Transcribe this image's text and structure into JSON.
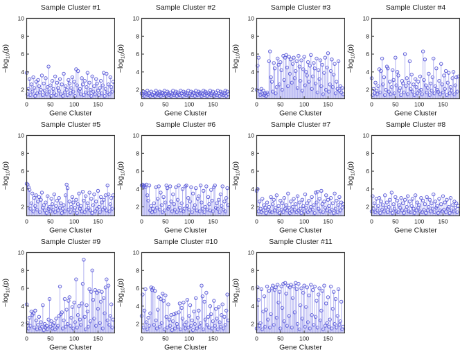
{
  "figure": {
    "background": "#ffffff",
    "grid": {
      "rows": 3,
      "cols": 4,
      "num_subplots": 11
    }
  },
  "style": {
    "stem_color": "#a5a5ee",
    "marker_color": "#5050d5",
    "axis_color": "#333333",
    "text_color": "#1a1a1a"
  },
  "chart_data": {
    "type": "stem",
    "xlabel": "Gene Cluster",
    "ylabel": {
      "pre": "−log",
      "sub": "10",
      "post": "(p)"
    },
    "xlim": [
      0,
      185
    ],
    "ylim": [
      1,
      10
    ],
    "xticks": [
      0,
      50,
      100,
      150
    ],
    "yticks": [
      2,
      4,
      6,
      8,
      10
    ],
    "legend": "none",
    "grid_lines": false,
    "x": [
      0,
      2,
      4,
      6,
      8,
      10,
      12,
      14,
      16,
      18,
      20,
      22,
      24,
      26,
      28,
      30,
      32,
      34,
      36,
      38,
      40,
      42,
      44,
      46,
      48,
      50,
      52,
      54,
      56,
      58,
      60,
      62,
      64,
      66,
      68,
      70,
      72,
      74,
      76,
      78,
      80,
      82,
      84,
      86,
      88,
      90,
      92,
      94,
      96,
      98,
      100,
      102,
      104,
      106,
      108,
      110,
      112,
      114,
      116,
      118,
      120,
      122,
      124,
      126,
      128,
      130,
      132,
      134,
      136,
      138,
      140,
      142,
      144,
      146,
      148,
      150,
      152,
      154,
      156,
      158,
      160,
      162,
      164,
      166,
      168,
      170,
      172,
      174,
      176,
      178,
      180,
      182
    ],
    "series": [
      {
        "name": "Sample Cluster #1",
        "values": [
          3.9,
          1.5,
          2.1,
          3.2,
          1.4,
          2.6,
          1.8,
          3.4,
          2.2,
          1.3,
          2.9,
          1.6,
          3.1,
          2.4,
          1.7,
          2.0,
          3.6,
          1.4,
          2.7,
          1.9,
          3.3,
          1.5,
          2.3,
          4.6,
          1.8,
          2.5,
          1.3,
          3.0,
          2.1,
          1.6,
          3.5,
          1.4,
          2.8,
          2.2,
          1.9,
          3.2,
          1.5,
          2.6,
          1.3,
          3.8,
          1.7,
          2.4,
          2.0,
          1.4,
          3.1,
          2.7,
          1.6,
          2.2,
          3.4,
          1.8,
          2.9,
          1.3,
          4.3,
          2.5,
          4.1,
          1.9,
          2.1,
          1.5,
          3.3,
          2.6,
          1.4,
          3.0,
          1.7,
          2.3,
          3.9,
          1.6,
          2.8,
          2.0,
          1.3,
          3.5,
          1.8,
          2.4,
          1.5,
          3.2,
          2.7,
          1.9,
          1.4,
          2.2,
          3.0,
          1.6,
          2.5,
          3.9,
          1.3,
          2.1,
          3.8,
          1.7,
          2.6,
          1.5,
          3.4,
          2.3,
          1.8,
          2.9
        ]
      },
      {
        "name": "Sample Cluster #2",
        "values": [
          1.6,
          1.4,
          1.8,
          1.3,
          1.7,
          1.5,
          1.9,
          1.4,
          1.6,
          1.3,
          1.8,
          1.5,
          1.4,
          1.7,
          1.3,
          1.9,
          1.5,
          1.6,
          1.4,
          1.8,
          1.3,
          1.7,
          1.6,
          1.4,
          1.9,
          1.5,
          1.3,
          1.8,
          1.6,
          1.4,
          1.7,
          1.3,
          1.5,
          1.9,
          1.4,
          1.6,
          1.8,
          1.3,
          1.7,
          1.5,
          1.4,
          1.9,
          1.6,
          1.3,
          1.8,
          1.5,
          1.7,
          1.4,
          1.6,
          1.9,
          1.3,
          1.5,
          1.8,
          1.4,
          1.7,
          1.6,
          1.3,
          1.9,
          1.5,
          1.4,
          1.8,
          1.6,
          1.7,
          1.3,
          1.5,
          1.9,
          1.4,
          1.8,
          1.6,
          1.3,
          1.7,
          1.5,
          1.9,
          1.4,
          1.6,
          1.8,
          1.3,
          1.5,
          1.7,
          1.4,
          1.9,
          1.6,
          1.3,
          1.8,
          1.5,
          1.7,
          1.4,
          1.6,
          1.9,
          1.3,
          1.8,
          1.5
        ]
      },
      {
        "name": "Sample Cluster #3",
        "values": [
          2.0,
          4.7,
          5.6,
          1.8,
          1.4,
          2.1,
          1.5,
          1.9,
          1.4,
          1.6,
          1.3,
          1.7,
          1.5,
          5.2,
          6.3,
          3.4,
          2.9,
          1.8,
          5.0,
          4.4,
          1.6,
          2.3,
          5.5,
          4.8,
          2.6,
          5.1,
          4.2,
          2.0,
          5.8,
          3.1,
          5.6,
          5.9,
          4.5,
          2.4,
          5.7,
          3.8,
          5.4,
          2.8,
          4.9,
          5.6,
          3.3,
          4.1,
          5.2,
          2.2,
          5.8,
          4.6,
          3.0,
          5.3,
          1.9,
          4.3,
          5.7,
          2.5,
          4.0,
          3.6,
          5.1,
          2.9,
          4.7,
          5.9,
          2.1,
          3.5,
          5.0,
          4.4,
          2.7,
          5.5,
          1.7,
          4.2,
          3.2,
          5.3,
          2.4,
          4.8,
          1.5,
          3.9,
          5.6,
          2.0,
          4.5,
          6.1,
          1.8,
          2.6,
          4.1,
          5.4,
          2.3,
          3.7,
          4.9,
          1.6,
          2.9,
          2.1,
          5.2,
          1.9,
          2.4,
          1.7,
          2.2,
          1.5
        ]
      },
      {
        "name": "Sample Cluster #4",
        "values": [
          3.3,
          1.4,
          2.1,
          1.6,
          2.8,
          1.9,
          1.5,
          2.4,
          4.3,
          1.7,
          4.1,
          5.5,
          2.6,
          3.4,
          1.4,
          2.0,
          4.6,
          4.4,
          1.8,
          2.9,
          1.5,
          2.3,
          4.2,
          3.1,
          1.6,
          5.6,
          2.5,
          4.0,
          3.6,
          1.9,
          2.2,
          1.4,
          3.0,
          2.7,
          1.7,
          6.0,
          2.4,
          3.3,
          1.5,
          2.8,
          5.2,
          2.1,
          3.7,
          1.8,
          2.6,
          1.4,
          3.2,
          2.3,
          1.6,
          2.9,
          1.9,
          3.5,
          2.0,
          1.5,
          6.3,
          3.1,
          5.4,
          2.5,
          1.7,
          2.2,
          3.8,
          1.4,
          2.7,
          1.9,
          3.4,
          5.5,
          1.6,
          2.4,
          4.4,
          2.0,
          1.8,
          3.0,
          1.5,
          4.9,
          2.6,
          1.7,
          3.6,
          2.1,
          4.1,
          1.4,
          2.8,
          3.9,
          1.6,
          2.3,
          1.9,
          3.3,
          4.0,
          1.5,
          2.5,
          3.4,
          1.8,
          3.5
        ]
      },
      {
        "name": "Sample Cluster #5",
        "values": [
          4.6,
          4.5,
          4.2,
          3.9,
          1.8,
          2.4,
          3.5,
          1.5,
          3.0,
          2.1,
          3.3,
          1.7,
          2.6,
          3.1,
          1.4,
          2.8,
          3.6,
          1.9,
          2.2,
          1.6,
          2.5,
          1.3,
          3.2,
          1.8,
          2.0,
          1.5,
          2.9,
          2.3,
          1.7,
          3.4,
          1.4,
          2.1,
          2.7,
          1.6,
          3.0,
          1.9,
          2.4,
          1.3,
          1.8,
          2.2,
          1.5,
          3.3,
          4.5,
          4.1,
          1.7,
          2.6,
          1.4,
          2.0,
          3.1,
          2.5,
          1.6,
          1.9,
          2.8,
          1.3,
          2.3,
          3.5,
          1.8,
          2.1,
          1.5,
          3.7,
          2.7,
          1.4,
          3.2,
          1.7,
          2.4,
          1.9,
          3.6,
          1.6,
          2.9,
          1.3,
          2.2,
          3.4,
          1.5,
          2.6,
          1.8,
          3.8,
          2.0,
          1.4,
          3.1,
          2.5,
          1.7,
          2.8,
          1.9,
          3.3,
          1.6,
          4.4,
          3.4,
          1.5,
          2.3,
          3.0,
          1.8,
          3.3
        ]
      },
      {
        "name": "Sample Cluster #6",
        "values": [
          4.4,
          4.5,
          4.3,
          4.4,
          4.2,
          4.5,
          3.3,
          2.7,
          4.4,
          1.6,
          2.1,
          1.4,
          1.8,
          2.4,
          1.5,
          4.2,
          1.9,
          2.9,
          4.3,
          1.7,
          3.6,
          2.2,
          1.4,
          3.1,
          1.6,
          2.5,
          4.4,
          4.1,
          1.8,
          2.0,
          4.3,
          2.6,
          1.5,
          3.4,
          2.3,
          1.7,
          4.2,
          1.4,
          2.8,
          4.4,
          1.9,
          1.6,
          2.4,
          4.0,
          1.5,
          1.8,
          4.3,
          4.4,
          2.1,
          3.0,
          1.7,
          2.6,
          4.2,
          1.4,
          3.5,
          1.9,
          2.2,
          4.1,
          1.6,
          2.9,
          3.2,
          1.5,
          4.4,
          2.5,
          1.8,
          3.8,
          1.4,
          2.0,
          4.3,
          1.7,
          3.1,
          2.3,
          1.6,
          3.9,
          2.7,
          1.5,
          4.2,
          4.4,
          1.9,
          2.4,
          1.8,
          2.8,
          1.4,
          3.4,
          2.1,
          4.3,
          1.7,
          2.6,
          1.5,
          3.0,
          4.1,
          2.2
        ]
      },
      {
        "name": "Sample Cluster #7",
        "values": [
          3.8,
          4.0,
          1.5,
          2.6,
          1.8,
          1.4,
          2.9,
          1.6,
          2.2,
          1.9,
          1.3,
          2.5,
          1.7,
          2.0,
          1.5,
          3.1,
          1.4,
          2.3,
          2.8,
          1.6,
          1.9,
          3.3,
          1.5,
          2.1,
          1.3,
          2.7,
          1.7,
          2.4,
          1.4,
          3.0,
          1.8,
          2.2,
          1.6,
          3.5,
          1.9,
          1.3,
          2.6,
          1.5,
          2.0,
          2.9,
          1.7,
          2.3,
          1.4,
          3.2,
          1.6,
          2.5,
          1.8,
          1.3,
          2.8,
          2.1,
          1.5,
          3.4,
          1.9,
          2.4,
          1.4,
          2.7,
          1.6,
          2.0,
          3.1,
          1.7,
          2.2,
          1.3,
          3.6,
          2.5,
          3.7,
          1.8,
          2.9,
          1.5,
          3.8,
          2.3,
          1.4,
          2.6,
          1.9,
          3.3,
          1.6,
          2.8,
          2.1,
          1.5,
          3.0,
          1.7,
          2.4,
          1.3,
          3.5,
          1.8,
          2.7,
          1.4,
          2.2,
          3.1,
          1.6,
          2.5,
          1.9,
          2.3
        ]
      },
      {
        "name": "Sample Cluster #8",
        "values": [
          1.5,
          3.2,
          1.8,
          2.4,
          1.4,
          2.9,
          1.6,
          2.1,
          3.0,
          1.3,
          2.6,
          1.7,
          2.2,
          1.5,
          3.3,
          1.9,
          2.5,
          1.4,
          2.0,
          2.8,
          1.6,
          3.6,
          1.3,
          2.3,
          1.8,
          3.1,
          1.5,
          2.7,
          1.4,
          2.2,
          1.9,
          3.0,
          1.6,
          2.4,
          1.3,
          2.8,
          1.7,
          2.0,
          3.2,
          1.5,
          2.6,
          1.4,
          2.1,
          2.9,
          1.8,
          1.3,
          3.3,
          1.6,
          2.5,
          1.9,
          2.2,
          1.5,
          3.0,
          1.4,
          2.7,
          1.7,
          2.3,
          1.3,
          3.1,
          1.6,
          2.0,
          2.8,
          1.5,
          2.4,
          1.8,
          3.4,
          1.4,
          2.6,
          1.9,
          2.1,
          1.3,
          2.9,
          1.6,
          2.3,
          1.5,
          3.2,
          1.7,
          2.5,
          1.4,
          2.8,
          1.8,
          2.0,
          1.3,
          3.0,
          1.6,
          2.2,
          1.5,
          2.6,
          1.9,
          2.4,
          1.4,
          2.1
        ]
      },
      {
        "name": "Sample Cluster #9",
        "values": [
          4.2,
          2.1,
          1.5,
          2.7,
          1.8,
          3.4,
          3.0,
          3.2,
          1.6,
          3.5,
          2.4,
          1.4,
          1.9,
          2.8,
          1.5,
          2.2,
          1.7,
          4.1,
          1.3,
          2.0,
          1.6,
          1.8,
          1.4,
          2.5,
          4.8,
          1.7,
          2.3,
          1.5,
          1.9,
          2.1,
          1.4,
          2.6,
          1.6,
          1.8,
          2.9,
          6.2,
          3.1,
          3.3,
          1.5,
          2.4,
          4.8,
          1.7,
          3.6,
          2.0,
          4.6,
          5.0,
          1.8,
          2.7,
          3.9,
          1.5,
          4.4,
          2.2,
          7.0,
          1.6,
          3.0,
          4.0,
          2.5,
          1.9,
          4.3,
          6.5,
          9.2,
          2.8,
          1.4,
          4.1,
          3.4,
          1.7,
          5.9,
          2.3,
          5.6,
          8.0,
          4.7,
          2.6,
          5.8,
          1.8,
          5.5,
          3.7,
          5.7,
          2.1,
          4.5,
          5.6,
          1.5,
          4.9,
          3.2,
          6.1,
          7.0,
          2.4,
          6.3,
          1.9,
          2.9,
          4.2,
          1.6,
          2.5
        ]
      },
      {
        "name": "Sample Cluster #10",
        "values": [
          2.9,
          5.3,
          1.6,
          3.5,
          5.9,
          2.2,
          1.4,
          2.7,
          1.8,
          3.2,
          6.1,
          5.8,
          6.0,
          1.9,
          5.7,
          2.4,
          1.5,
          3.6,
          5.0,
          1.7,
          4.8,
          2.1,
          5.4,
          4.6,
          1.4,
          5.2,
          2.8,
          1.6,
          4.2,
          2.5,
          1.8,
          3.0,
          1.3,
          2.3,
          3.1,
          1.5,
          3.2,
          2.0,
          1.7,
          3.3,
          4.3,
          1.4,
          3.8,
          2.6,
          4.4,
          1.9,
          1.5,
          2.2,
          4.7,
          1.6,
          2.9,
          4.1,
          1.8,
          2.4,
          1.3,
          3.4,
          2.0,
          4.9,
          1.5,
          2.7,
          3.5,
          1.7,
          2.1,
          6.3,
          5.1,
          1.4,
          4.5,
          2.5,
          5.5,
          1.9,
          2.8,
          1.6,
          4.0,
          3.1,
          1.5,
          2.3,
          4.6,
          1.8,
          3.7,
          2.6,
          1.4,
          3.9,
          2.2,
          1.7,
          3.0,
          4.2,
          1.5,
          2.8,
          1.9,
          3.5,
          5.3,
          2.4
        ]
      },
      {
        "name": "Sample Cluster #11",
        "values": [
          1.5,
          6.1,
          4.7,
          1.8,
          2.1,
          5.9,
          1.4,
          3.4,
          5.1,
          1.7,
          3.6,
          6.2,
          2.5,
          5.7,
          1.6,
          3.1,
          6.0,
          6.3,
          1.9,
          5.8,
          6.1,
          2.7,
          6.4,
          4.4,
          5.6,
          1.5,
          6.2,
          3.8,
          6.5,
          2.3,
          6.6,
          5.4,
          1.8,
          6.3,
          2.9,
          6.1,
          6.4,
          1.6,
          4.9,
          6.2,
          3.3,
          6.6,
          5.9,
          2.0,
          6.5,
          1.4,
          4.1,
          6.0,
          2.6,
          5.5,
          6.3,
          1.7,
          3.9,
          6.1,
          2.2,
          5.2,
          1.5,
          6.4,
          3.0,
          5.8,
          1.9,
          6.2,
          2.8,
          4.6,
          1.6,
          5.3,
          6.0,
          2.4,
          3.5,
          5.7,
          1.4,
          6.3,
          1.8,
          4.3,
          2.1,
          5.0,
          1.7,
          2.5,
          6.2,
          1.5,
          3.7,
          5.6,
          2.0,
          4.8,
          1.6,
          2.9,
          5.9,
          1.9,
          2.3,
          4.5,
          1.4,
          1.7
        ]
      }
    ]
  }
}
